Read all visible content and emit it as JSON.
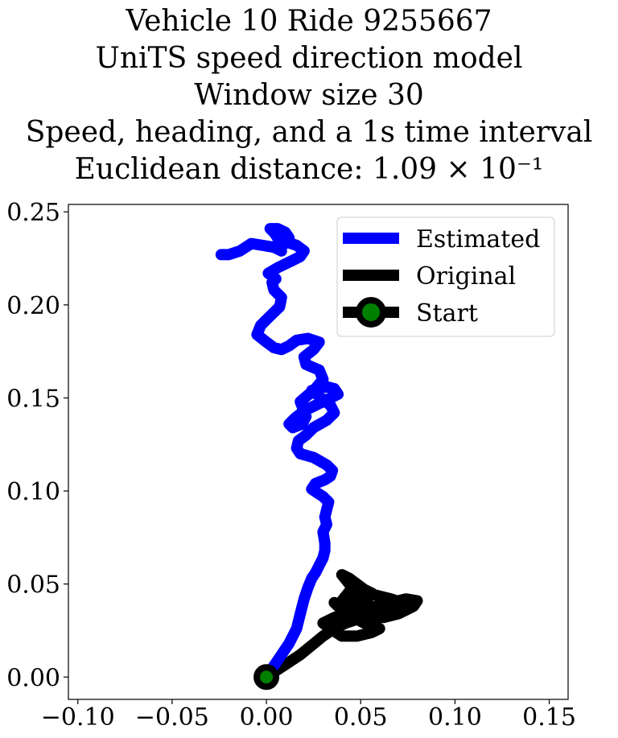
{
  "chart_data": {
    "type": "line",
    "title_lines": [
      "Vehicle 10 Ride 9255667",
      "UniTS speed direction model",
      "Window size 30",
      "Speed, heading, and a 1s time interval",
      "Euclidean distance: 1.09 × 10⁻¹"
    ],
    "xlabel": "",
    "ylabel": "",
    "xlim": [
      -0.105,
      0.16
    ],
    "ylim": [
      -0.012,
      0.254
    ],
    "x_ticks": [
      -0.1,
      -0.05,
      0.0,
      0.05,
      0.1,
      0.15
    ],
    "x_tick_labels": [
      "−0.10",
      "−0.05",
      "0.00",
      "0.05",
      "0.10",
      "0.15"
    ],
    "y_ticks": [
      0.0,
      0.05,
      0.1,
      0.15,
      0.2,
      0.25
    ],
    "y_tick_labels": [
      "0.00",
      "0.05",
      "0.10",
      "0.15",
      "0.20",
      "0.25"
    ],
    "grid": false,
    "legend_position": "top-right",
    "series": [
      {
        "name": "Estimated",
        "color": "#0000ff",
        "x": [
          0.0,
          0.004,
          0.008,
          0.012,
          0.016,
          0.018,
          0.02,
          0.022,
          0.024,
          0.026,
          0.028,
          0.03,
          0.031,
          0.031,
          0.03,
          0.032,
          0.031,
          0.032,
          0.033,
          0.03,
          0.027,
          0.024,
          0.026,
          0.031,
          0.034,
          0.035,
          0.032,
          0.025,
          0.018,
          0.016,
          0.017,
          0.021,
          0.025,
          0.032,
          0.036,
          0.034,
          0.029,
          0.024,
          0.032,
          0.036,
          0.038,
          0.032,
          0.026,
          0.02,
          0.015,
          0.012,
          0.014,
          0.019,
          0.021,
          0.018,
          0.026,
          0.03,
          0.028,
          0.021,
          0.02,
          0.025,
          0.028,
          0.022,
          0.016,
          0.012,
          0.008,
          0.004,
          0.0,
          -0.005,
          -0.003,
          0.002,
          0.007,
          0.008,
          0.004,
          0.003,
          0.005,
          0.001,
          0.006,
          0.01,
          0.014,
          0.018,
          0.02,
          0.016,
          0.01,
          0.006,
          0.004,
          0.002,
          0.006,
          0.01,
          0.012,
          0.01,
          0.006,
          0.008,
          0.004,
          -0.002,
          -0.008,
          -0.014,
          -0.02,
          -0.024
        ],
        "y": [
          0.0,
          0.006,
          0.012,
          0.018,
          0.026,
          0.034,
          0.042,
          0.048,
          0.053,
          0.056,
          0.06,
          0.064,
          0.068,
          0.072,
          0.078,
          0.082,
          0.086,
          0.09,
          0.094,
          0.097,
          0.099,
          0.101,
          0.104,
          0.106,
          0.108,
          0.111,
          0.114,
          0.118,
          0.12,
          0.123,
          0.127,
          0.13,
          0.134,
          0.138,
          0.142,
          0.146,
          0.15,
          0.154,
          0.156,
          0.155,
          0.152,
          0.149,
          0.146,
          0.143,
          0.139,
          0.136,
          0.134,
          0.136,
          0.14,
          0.148,
          0.155,
          0.16,
          0.165,
          0.168,
          0.172,
          0.176,
          0.18,
          0.182,
          0.181,
          0.178,
          0.176,
          0.177,
          0.18,
          0.184,
          0.189,
          0.194,
          0.199,
          0.204,
          0.208,
          0.212,
          0.214,
          0.217,
          0.22,
          0.222,
          0.224,
          0.226,
          0.229,
          0.232,
          0.234,
          0.236,
          0.239,
          0.241,
          0.241,
          0.239,
          0.236,
          0.233,
          0.233,
          0.229,
          0.231,
          0.232,
          0.233,
          0.229,
          0.227,
          0.227
        ]
      },
      {
        "name": "Original",
        "color": "#000000",
        "x": [
          0.0,
          0.006,
          0.012,
          0.018,
          0.024,
          0.03,
          0.036,
          0.042,
          0.048,
          0.052,
          0.056,
          0.06,
          0.056,
          0.048,
          0.04,
          0.034,
          0.03,
          0.036,
          0.044,
          0.052,
          0.058,
          0.056,
          0.05,
          0.046,
          0.052,
          0.056,
          0.05,
          0.044,
          0.04,
          0.046,
          0.054,
          0.062,
          0.07,
          0.078,
          0.08,
          0.074,
          0.066,
          0.058,
          0.052,
          0.048,
          0.054,
          0.06,
          0.066,
          0.072,
          0.066,
          0.058,
          0.052,
          0.046,
          0.04,
          0.044,
          0.05,
          0.052,
          0.048,
          0.044,
          0.04,
          0.044,
          0.048,
          0.046,
          0.042,
          0.038,
          0.036
        ],
        "y": [
          0.0,
          0.004,
          0.008,
          0.012,
          0.017,
          0.022,
          0.026,
          0.029,
          0.031,
          0.03,
          0.028,
          0.026,
          0.024,
          0.022,
          0.022,
          0.026,
          0.029,
          0.032,
          0.035,
          0.033,
          0.03,
          0.027,
          0.03,
          0.035,
          0.04,
          0.045,
          0.048,
          0.046,
          0.041,
          0.036,
          0.034,
          0.032,
          0.034,
          0.038,
          0.041,
          0.042,
          0.04,
          0.038,
          0.036,
          0.034,
          0.032,
          0.034,
          0.037,
          0.04,
          0.042,
          0.044,
          0.045,
          0.043,
          0.04,
          0.036,
          0.042,
          0.047,
          0.05,
          0.053,
          0.055,
          0.05,
          0.045,
          0.042,
          0.04,
          0.038,
          0.04
        ]
      }
    ],
    "start_marker": {
      "name": "Start",
      "x": 0.0,
      "y": 0.0,
      "edge_color": "#000000",
      "face_color": "#008000"
    }
  }
}
